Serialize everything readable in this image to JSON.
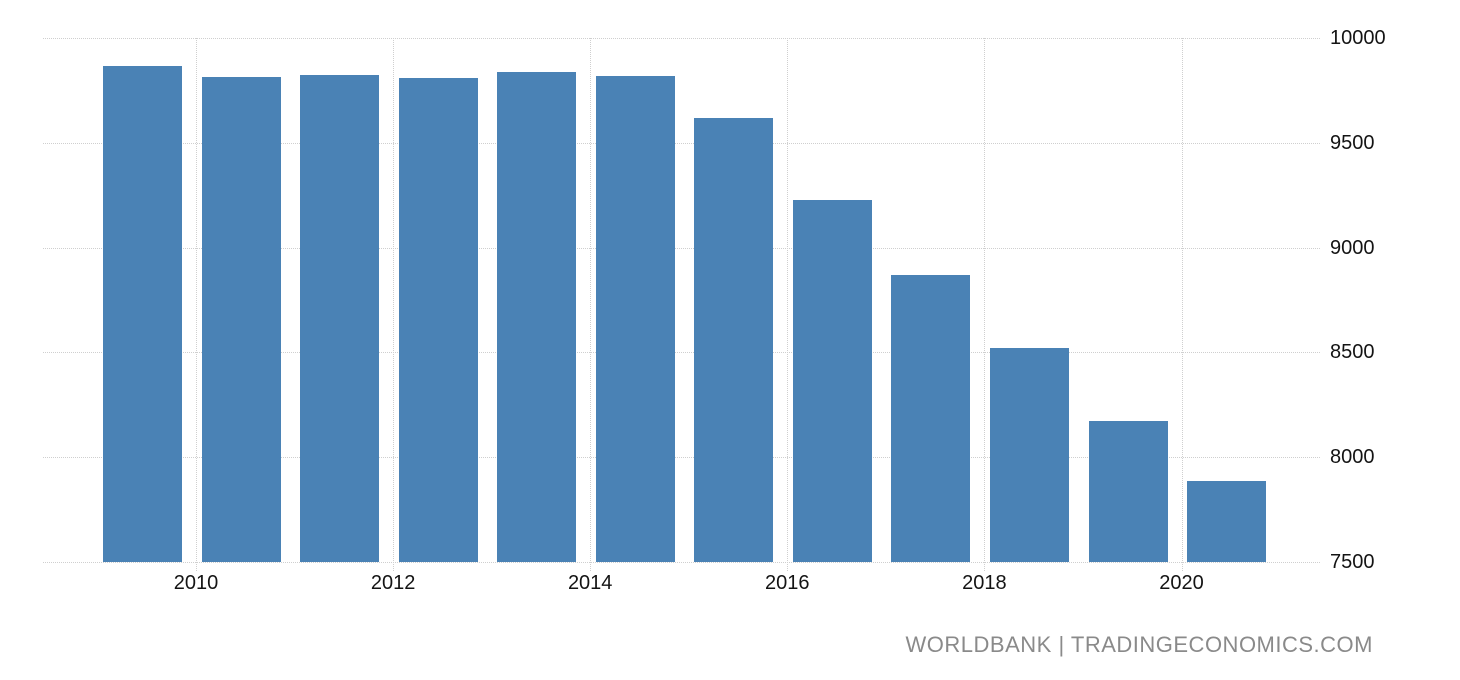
{
  "watermark": {
    "text": "WORLDBANK | TRADINGECONOMICS.COM"
  },
  "colors": {
    "background": "#FFFFFF",
    "bar": "#4A82B5",
    "grid": "#CFCFCF",
    "axis_label": "#141414",
    "watermark": "#8A8A8A"
  },
  "chart_data": {
    "type": "bar",
    "title": "",
    "xlabel": "",
    "ylabel": "",
    "categories": [
      "2009",
      "2010",
      "2011",
      "2012",
      "2013",
      "2014",
      "2015",
      "2016",
      "2017",
      "2018",
      "2019",
      "2020"
    ],
    "values": [
      9866,
      9814,
      9823,
      9810,
      9836,
      9820,
      9618,
      9229,
      8868,
      8521,
      8174,
      7888
    ],
    "ylim": [
      7500,
      10000
    ],
    "yticks": [
      10000,
      9500,
      9000,
      8500,
      8000,
      7500
    ],
    "xticks": [
      "2010",
      "2012",
      "2014",
      "2016",
      "2018",
      "2020"
    ],
    "grid": true,
    "grid_style": "dotted",
    "legend": false,
    "y_axis_side": "right",
    "source": "WORLDBANK | TRADINGECONOMICS.COM"
  }
}
